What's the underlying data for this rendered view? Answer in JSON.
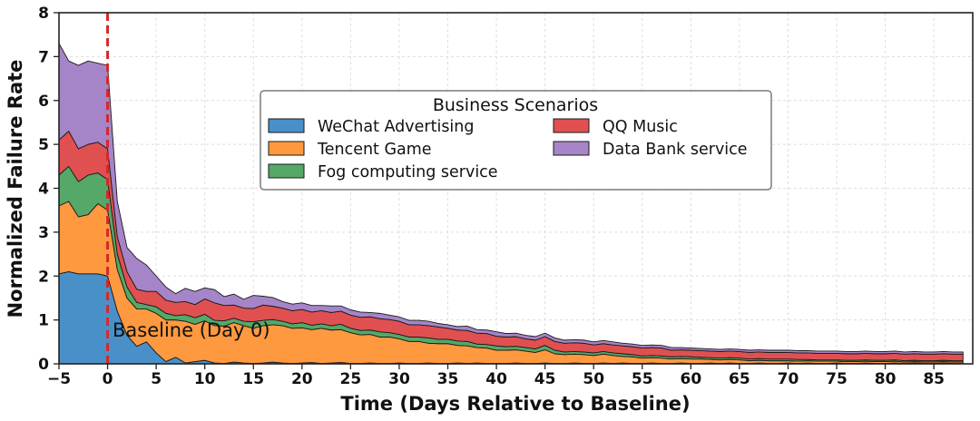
{
  "chart_data": {
    "type": "area",
    "stacked": true,
    "title": "",
    "xlabel": "Time (Days Relative to Baseline)",
    "ylabel": "Normalized Failure Rate",
    "xlim": [
      -5,
      89
    ],
    "ylim": [
      0,
      8
    ],
    "xticks": [
      -5,
      0,
      5,
      10,
      15,
      20,
      25,
      30,
      35,
      40,
      45,
      50,
      55,
      60,
      65,
      70,
      75,
      80,
      85
    ],
    "yticks": [
      0,
      1,
      2,
      3,
      4,
      5,
      6,
      7,
      8
    ],
    "grid": true,
    "legend_title": "Business Scenarios",
    "legend_position": "upper-center",
    "annotation": {
      "text": "Baseline (Day 0)",
      "x": 0.5,
      "y": 0.7
    },
    "baseline_x": 0,
    "baseline_color": "#d62728",
    "x": [
      -5,
      -4,
      -3,
      -2,
      -1,
      0,
      1,
      2,
      3,
      4,
      5,
      6,
      7,
      8,
      9,
      10,
      11,
      12,
      13,
      14,
      15,
      16,
      17,
      18,
      19,
      20,
      21,
      22,
      23,
      24,
      25,
      26,
      27,
      28,
      29,
      30,
      31,
      32,
      33,
      34,
      35,
      36,
      37,
      38,
      39,
      40,
      41,
      42,
      43,
      44,
      45,
      46,
      47,
      48,
      49,
      50,
      51,
      52,
      53,
      54,
      55,
      56,
      57,
      58,
      59,
      60,
      61,
      62,
      63,
      64,
      65,
      66,
      67,
      68,
      69,
      70,
      71,
      72,
      73,
      74,
      75,
      76,
      77,
      78,
      79,
      80,
      81,
      82,
      83,
      84,
      85,
      86,
      87,
      88
    ],
    "series": [
      {
        "name": "WeChat Advertising",
        "color": "#4a90c8",
        "values": [
          2.05,
          2.1,
          2.05,
          2.05,
          2.05,
          2.0,
          1.2,
          0.65,
          0.4,
          0.5,
          0.25,
          0.05,
          0.15,
          0.02,
          0.05,
          0.08,
          0.02,
          0.01,
          0.04,
          0.02,
          0.01,
          0.02,
          0.04,
          0.02,
          0.01,
          0.02,
          0.03,
          0.01,
          0.02,
          0.03,
          0.01,
          0.01,
          0.02,
          0.01,
          0.01,
          0.02,
          0.01,
          0.01,
          0.02,
          0.01,
          0.01,
          0.02,
          0.01,
          0.02,
          0.01,
          0.01,
          0.01,
          0.02,
          0.01,
          0.01,
          0.02,
          0.01,
          0.01,
          0.02,
          0.01,
          0.01,
          0.02,
          0.01,
          0.02,
          0.01,
          0.01,
          0.02,
          0.01,
          0.01,
          0.02,
          0.01,
          0.01,
          0.02,
          0.01,
          0.02,
          0.01,
          0.01,
          0.02,
          0.01,
          0.01,
          0.02,
          0.01,
          0.02,
          0.01,
          0.01,
          0.02,
          0.01,
          0.01,
          0.02,
          0.01,
          0.01,
          0.02,
          0.01,
          0.02,
          0.01,
          0.01,
          0.02,
          0.01,
          0.01
        ]
      },
      {
        "name": "Tencent Game",
        "color": "#ff9940",
        "values": [
          1.55,
          1.6,
          1.3,
          1.35,
          1.6,
          1.5,
          0.95,
          0.85,
          0.85,
          0.75,
          0.9,
          0.95,
          0.85,
          0.95,
          0.85,
          0.9,
          0.85,
          0.85,
          0.9,
          0.85,
          0.8,
          0.85,
          0.85,
          0.85,
          0.8,
          0.8,
          0.75,
          0.8,
          0.75,
          0.75,
          0.7,
          0.65,
          0.65,
          0.6,
          0.6,
          0.55,
          0.5,
          0.5,
          0.45,
          0.45,
          0.45,
          0.4,
          0.4,
          0.35,
          0.35,
          0.3,
          0.3,
          0.3,
          0.28,
          0.25,
          0.3,
          0.22,
          0.2,
          0.2,
          0.2,
          0.18,
          0.2,
          0.18,
          0.15,
          0.15,
          0.12,
          0.12,
          0.12,
          0.1,
          0.1,
          0.1,
          0.1,
          0.08,
          0.08,
          0.08,
          0.08,
          0.06,
          0.06,
          0.06,
          0.06,
          0.05,
          0.05,
          0.05,
          0.05,
          0.05,
          0.04,
          0.04,
          0.04,
          0.04,
          0.04,
          0.04,
          0.04,
          0.03,
          0.03,
          0.03,
          0.03,
          0.03,
          0.03,
          0.03
        ]
      },
      {
        "name": "Fog computing service",
        "color": "#55a868",
        "values": [
          0.7,
          0.8,
          0.8,
          0.9,
          0.7,
          0.7,
          0.35,
          0.25,
          0.15,
          0.1,
          0.15,
          0.15,
          0.1,
          0.15,
          0.15,
          0.15,
          0.12,
          0.12,
          0.1,
          0.1,
          0.15,
          0.12,
          0.12,
          0.1,
          0.1,
          0.12,
          0.1,
          0.1,
          0.1,
          0.12,
          0.1,
          0.1,
          0.1,
          0.12,
          0.1,
          0.1,
          0.1,
          0.1,
          0.12,
          0.1,
          0.1,
          0.1,
          0.1,
          0.08,
          0.08,
          0.1,
          0.08,
          0.08,
          0.08,
          0.08,
          0.1,
          0.08,
          0.06,
          0.06,
          0.06,
          0.06,
          0.06,
          0.06,
          0.06,
          0.05,
          0.05,
          0.05,
          0.05,
          0.05,
          0.05,
          0.05,
          0.04,
          0.04,
          0.04,
          0.04,
          0.04,
          0.04,
          0.04,
          0.04,
          0.04,
          0.04,
          0.04,
          0.03,
          0.03,
          0.03,
          0.03,
          0.03,
          0.03,
          0.03,
          0.03,
          0.03,
          0.03,
          0.03,
          0.03,
          0.03,
          0.03,
          0.03,
          0.03,
          0.03
        ]
      },
      {
        "name": "QQ Music",
        "color": "#e05050",
        "values": [
          0.8,
          0.8,
          0.75,
          0.7,
          0.7,
          0.7,
          0.4,
          0.35,
          0.3,
          0.3,
          0.35,
          0.3,
          0.3,
          0.3,
          0.3,
          0.35,
          0.4,
          0.35,
          0.3,
          0.3,
          0.3,
          0.35,
          0.3,
          0.3,
          0.3,
          0.3,
          0.3,
          0.3,
          0.3,
          0.3,
          0.3,
          0.3,
          0.3,
          0.3,
          0.3,
          0.3,
          0.28,
          0.28,
          0.28,
          0.28,
          0.25,
          0.25,
          0.25,
          0.25,
          0.25,
          0.22,
          0.22,
          0.22,
          0.2,
          0.2,
          0.2,
          0.2,
          0.2,
          0.2,
          0.2,
          0.18,
          0.18,
          0.18,
          0.18,
          0.18,
          0.18,
          0.18,
          0.18,
          0.15,
          0.15,
          0.15,
          0.15,
          0.15,
          0.15,
          0.15,
          0.15,
          0.15,
          0.15,
          0.15,
          0.15,
          0.15,
          0.15,
          0.15,
          0.15,
          0.15,
          0.15,
          0.15,
          0.15,
          0.15,
          0.15,
          0.15,
          0.15,
          0.15,
          0.15,
          0.15,
          0.15,
          0.15,
          0.15,
          0.15
        ]
      },
      {
        "name": "Data Bank service",
        "color": "#a585c8",
        "values": [
          2.2,
          1.6,
          1.9,
          1.9,
          1.8,
          1.9,
          0.8,
          0.55,
          0.7,
          0.6,
          0.35,
          0.3,
          0.2,
          0.3,
          0.3,
          0.25,
          0.3,
          0.2,
          0.25,
          0.2,
          0.3,
          0.2,
          0.2,
          0.15,
          0.15,
          0.15,
          0.15,
          0.12,
          0.15,
          0.12,
          0.12,
          0.12,
          0.1,
          0.12,
          0.1,
          0.1,
          0.1,
          0.1,
          0.1,
          0.08,
          0.08,
          0.08,
          0.1,
          0.08,
          0.08,
          0.1,
          0.08,
          0.08,
          0.08,
          0.08,
          0.08,
          0.08,
          0.07,
          0.07,
          0.07,
          0.07,
          0.07,
          0.07,
          0.06,
          0.06,
          0.06,
          0.06,
          0.06,
          0.06,
          0.05,
          0.05,
          0.05,
          0.05,
          0.05,
          0.05,
          0.05,
          0.05,
          0.05,
          0.05,
          0.05,
          0.05,
          0.05,
          0.05,
          0.05,
          0.05,
          0.05,
          0.05,
          0.05,
          0.05,
          0.05,
          0.05,
          0.05,
          0.05,
          0.05,
          0.05,
          0.05,
          0.05,
          0.05,
          0.05
        ]
      }
    ]
  }
}
